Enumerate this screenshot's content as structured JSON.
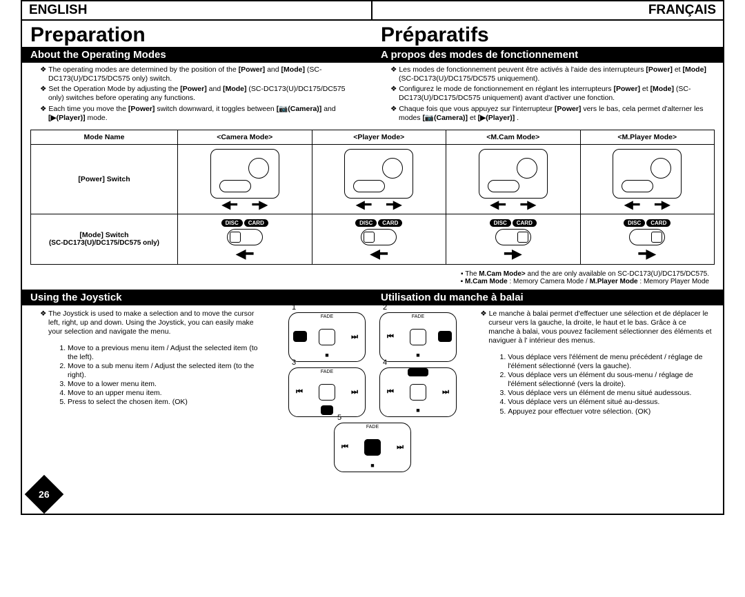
{
  "lang": {
    "left": "ENGLISH",
    "right": "FRANÇAIS"
  },
  "title": {
    "left": "Preparation",
    "right": "Préparatifs"
  },
  "sec1": {
    "left_head": "About the Operating Modes",
    "right_head": "A propos des modes de fonctionnement",
    "left_b1": "The operating modes are determined by the position of the <b>[Power]</b> and <b>[Mode]</b> (SC-DC173(U)/DC175/DC575 only) switch.",
    "left_b2": "Set the Operation Mode by adjusting the <b>[Power]</b> and <b>[Mode]</b> (SC-DC173(U)/DC175/DC575 only) switches before operating any functions.",
    "left_b3": "Each time you move the <b>[Power]</b> switch downward, it toggles between <b>[📷(Camera)]</b> and <b>[▶(Player)]</b> mode.",
    "right_b1": "Les modes de fonctionnement peuvent être activés à l'aide des interrupteurs <b>[Power]</b> et <b>[Mode]</b> (SC-DC173(U)/DC175/DC575 uniquement).",
    "right_b2": "Configurez le mode de fonctionnement en réglant les interrupteurs <b>[Power]</b> et <b>[Mode]</b> (SC-DC173(U)/DC175/DC575 uniquement) avant d'activer une fonction.",
    "right_b3": "Chaque fois que vous appuyez sur l'interrupteur <b>[Power]</b> vers le bas, cela permet d'alterner les modes <b>[📷(Camera)]</b> et <b>[▶(Player)]</b> ."
  },
  "table": {
    "h0": "Mode Name",
    "h1": "<Camera Mode>",
    "h2": "<Player Mode>",
    "h3": "<M.Cam Mode>",
    "h4": "<M.Player Mode>",
    "r1": "[Power] Switch",
    "r2a": "[Mode] Switch",
    "r2b": "(SC-DC173(U)/DC175/DC575 only)",
    "disc": "DISC",
    "card": "CARD"
  },
  "notes": {
    "n1": "The <b>M.Cam Mode></b> and the <b><M.Player Mode></b> are only available on SC-DC173(U)/DC175/DC575.",
    "n2": "<b>M.Cam Mode</b> : Memory Camera Mode / <b>M.Player Mode</b> : Memory Player Mode"
  },
  "sec2": {
    "left_head": "Using the Joystick",
    "right_head": "Utilisation du manche à balai",
    "left_intro": "The Joystick is used to make a selection and to move the cursor left, right, up and down. Using the Joystick, you can easily make your selection and navigate the menu.",
    "left_o1": "Move to a previous menu item / Adjust the selected item (to the left).",
    "left_o2": "Move to a sub menu item / Adjust the selected item (to the right).",
    "left_o3": "Move to a lower menu item.",
    "left_o4": "Move to an upper menu item.",
    "left_o5": "Press to select the chosen item. (OK)",
    "right_intro": "Le manche à balai permet d'effectuer une sélection et de déplacer le curseur vers la gauche, la droite, le haut et le bas. Grâce à ce manche à balai, vous pouvez facilement sélectionner des éléments et naviguer à l' intérieur des menus.",
    "right_o1": "Vous déplace vers l'élément de menu précédent / réglage de l'élément sélectionné (vers la gauche).",
    "right_o2": "Vous déplace vers un élément du sous-menu / réglage de l'élément sélectionné (vers la droite).",
    "right_o3": "Vous déplace vers un élément de menu situé audessous.",
    "right_o4": "Vous déplace vers un élément situé au-dessus.",
    "right_o5": "Appuyez pour effectuer votre sélection. (OK)"
  },
  "page_number": "26",
  "colors": {
    "bg": "#ffffff",
    "fg": "#000000"
  }
}
